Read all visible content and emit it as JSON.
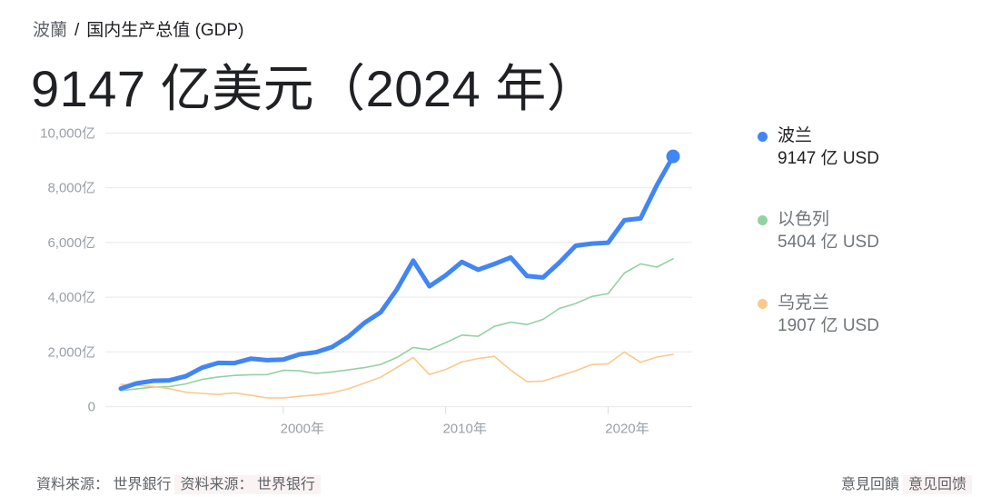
{
  "breadcrumb": {
    "country": "波蘭",
    "separator": "/",
    "metric": "国内生产总值 (GDP)"
  },
  "headline": "9147 亿美元（2024 年）",
  "legend": [
    {
      "name": "波兰",
      "value": "9147 亿 USD",
      "color": "#4285F4",
      "state": "active"
    },
    {
      "name": "以色列",
      "value": "5404 亿 USD",
      "color": "#93D1A2",
      "state": "dim"
    },
    {
      "name": "乌克兰",
      "value": "1907 亿 USD",
      "color": "#FBC98E",
      "state": "dim"
    }
  ],
  "footer": {
    "source_trad": "資料來源： 世界銀行",
    "source_simp": "资料来源： 世界银行",
    "feedback_trad": "意見回饋",
    "feedback_simp": "意见回馈"
  },
  "chart_data": {
    "type": "line",
    "title": "国内生产总值 (GDP)",
    "xlabel": "",
    "ylabel": "亿 USD",
    "x": [
      1990,
      1991,
      1992,
      1993,
      1994,
      1995,
      1996,
      1997,
      1998,
      1999,
      2000,
      2001,
      2002,
      2003,
      2004,
      2005,
      2006,
      2007,
      2008,
      2009,
      2010,
      2011,
      2012,
      2013,
      2014,
      2015,
      2016,
      2017,
      2018,
      2019,
      2020,
      2021,
      2022,
      2023,
      2024
    ],
    "xticks": [
      {
        "value": 2000,
        "label": "2000年"
      },
      {
        "value": 2010,
        "label": "2010年"
      },
      {
        "value": 2020,
        "label": "2020年"
      }
    ],
    "yticks": [
      {
        "value": 0,
        "label": "0"
      },
      {
        "value": 2000,
        "label": "2,000亿"
      },
      {
        "value": 4000,
        "label": "4,000亿"
      },
      {
        "value": 6000,
        "label": "6,000亿"
      },
      {
        "value": 8000,
        "label": "8,000亿"
      },
      {
        "value": 10000,
        "label": "10,000亿"
      }
    ],
    "ylim": [
      0,
      10000
    ],
    "grid": true,
    "legend_position": "right",
    "series": [
      {
        "name": "波兰",
        "color": "#4285F4",
        "width": 5,
        "end_marker": true,
        "values": [
          660,
          855,
          943,
          960,
          1108,
          1423,
          1599,
          1591,
          1750,
          1697,
          1722,
          1909,
          1987,
          2175,
          2551,
          3061,
          3447,
          4290,
          5338,
          4398,
          4798,
          5288,
          5004,
          5216,
          5453,
          4776,
          4720,
          5267,
          5881,
          5961,
          5994,
          6813,
          6882,
          8092,
          9147
        ]
      },
      {
        "name": "以色列",
        "color": "#93D1A2",
        "width": 1.6,
        "end_marker": false,
        "values": [
          586,
          651,
          717,
          733,
          830,
          993,
          1084,
          1139,
          1166,
          1171,
          1324,
          1310,
          1216,
          1268,
          1343,
          1425,
          1540,
          1796,
          2164,
          2081,
          2336,
          2614,
          2573,
          2934,
          3085,
          3001,
          3190,
          3588,
          3767,
          4025,
          4133,
          4885,
          5220,
          5099,
          5404
        ]
      },
      {
        "name": "乌克兰",
        "color": "#FBC98E",
        "width": 1.6,
        "end_marker": false,
        "values": [
          815,
          775,
          739,
          656,
          525,
          482,
          446,
          502,
          419,
          316,
          313,
          380,
          424,
          501,
          649,
          861,
          1078,
          1427,
          1798,
          1172,
          1360,
          1632,
          1758,
          1833,
          1335,
          910,
          934,
          1121,
          1309,
          1539,
          1566,
          1998,
          1619,
          1812,
          1907
        ]
      }
    ]
  }
}
